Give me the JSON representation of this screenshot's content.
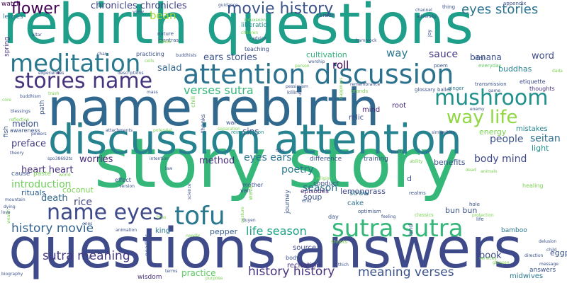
{
  "words": [
    {
      "text": "story story",
      "color": "#35b779"
    },
    {
      "text": "rebirth questions",
      "color": "#1f9e89"
    },
    {
      "text": "name rebirth",
      "color": "#31688e"
    },
    {
      "text": "questions answers",
      "color": "#3e4a89"
    },
    {
      "text": "discussion attention",
      "color": "#26828e"
    },
    {
      "text": "attention discussion",
      "color": "#2c728e"
    },
    {
      "text": "sutra sutra",
      "color": "#35b779"
    },
    {
      "text": "movie history",
      "color": "#3b528b"
    },
    {
      "text": "meditation",
      "color": "#2a788e"
    },
    {
      "text": "stories name",
      "color": "#46337e"
    },
    {
      "text": "mushroom",
      "color": "#21918c"
    },
    {
      "text": "way life",
      "color": "#90d743"
    },
    {
      "text": "tofu",
      "color": "#2a788e"
    },
    {
      "text": "name eyes",
      "color": "#3e4a89"
    },
    {
      "text": "flower",
      "color": "#440154"
    },
    {
      "text": "eyes stories",
      "color": "#2c728e"
    },
    {
      "text": "history movie",
      "color": "#33638d"
    },
    {
      "text": "sutra meaning",
      "color": "#443983"
    },
    {
      "text": "history history",
      "color": "#46327e"
    },
    {
      "text": "meaning verses",
      "color": "#3b528b"
    },
    {
      "text": "life season",
      "color": "#1fa187"
    },
    {
      "text": "verses sutra",
      "color": "#35b779"
    },
    {
      "text": "chronicles chronicles",
      "color": "#414487"
    },
    {
      "text": "heart heart",
      "color": "#46327e"
    },
    {
      "text": "introduction",
      "color": "#6ece58"
    },
    {
      "text": "poetry",
      "color": "#2a788e"
    },
    {
      "text": "worries",
      "color": "#482878"
    },
    {
      "text": "preface",
      "color": "#433e85"
    },
    {
      "text": "people",
      "color": "#3b528b"
    },
    {
      "text": "seitan",
      "color": "#2e6f8e"
    },
    {
      "text": "body mind",
      "color": "#3e4989"
    },
    {
      "text": "salad",
      "color": "#31688e"
    },
    {
      "text": "sauce",
      "color": "#443a83"
    },
    {
      "text": "season",
      "color": "#2d708e"
    },
    {
      "text": "ears stories",
      "color": "#3b528b"
    },
    {
      "text": "rice",
      "color": "#404688"
    },
    {
      "text": "death",
      "color": "#31688e"
    },
    {
      "text": "eyes ears",
      "color": "#2c728e"
    },
    {
      "text": "method",
      "color": "#472d7b"
    },
    {
      "text": "melon",
      "color": "#3b528b"
    },
    {
      "text": "bean",
      "color": "#a0da39"
    },
    {
      "text": "roll",
      "color": "#440154"
    },
    {
      "text": "way",
      "color": "#2a788e"
    },
    {
      "text": "word",
      "color": "#3e4a89"
    },
    {
      "text": "banana",
      "color": "#3b528b"
    },
    {
      "text": "buddhas",
      "color": "#27808e"
    },
    {
      "text": "cultivation",
      "color": "#2fb47c"
    },
    {
      "text": "energy",
      "color": "#7ad151"
    },
    {
      "text": "light",
      "color": "#21918c"
    },
    {
      "text": "lemongrass",
      "color": "#3e4989"
    },
    {
      "text": "book",
      "color": "#3e4a89"
    },
    {
      "text": "benefits",
      "color": "#3b528b"
    },
    {
      "text": "coconut",
      "color": "#7ad151"
    },
    {
      "text": "soup",
      "color": "#3b528b"
    },
    {
      "text": "bun bun",
      "color": "#3b528b"
    },
    {
      "text": "practice",
      "color": "#5ec962"
    },
    {
      "text": "midwives",
      "color": "#2a788e"
    },
    {
      "text": "eggplant",
      "color": "#3b528b"
    },
    {
      "text": "mistakes",
      "color": "#25848e"
    },
    {
      "text": "sins",
      "color": "#3e4a89"
    },
    {
      "text": "rituals",
      "color": "#33638d"
    },
    {
      "text": "pepper",
      "color": "#365c8d"
    },
    {
      "text": "king",
      "color": "#2a788e"
    },
    {
      "text": "cake",
      "color": "#2d708e"
    },
    {
      "text": "episodes",
      "color": "#482878"
    },
    {
      "text": "straw",
      "color": "#2d708e"
    },
    {
      "text": "root",
      "color": "#482878"
    },
    {
      "text": "relic",
      "color": "#3e4a89"
    },
    {
      "text": "mind",
      "color": "#482878"
    },
    {
      "text": "recitation",
      "color": "#46327e"
    },
    {
      "text": "source",
      "color": "#3e4a89"
    },
    {
      "text": "wisdom",
      "color": "#46327e"
    },
    {
      "text": "answers",
      "color": "#3b528b"
    },
    {
      "text": "bamboo",
      "color": "#2a788e"
    },
    {
      "text": "conduct",
      "color": "#3e4a89"
    },
    {
      "text": "mother",
      "color": "#3b528b"
    },
    {
      "text": "van",
      "color": "#3b528b"
    },
    {
      "text": "healing",
      "color": "#7ad151"
    },
    {
      "text": "thoughts",
      "color": "#46327e"
    },
    {
      "text": "etiquette",
      "color": "#3e4a89"
    },
    {
      "text": "everyday",
      "color": "#5ec962"
    },
    {
      "text": "poem",
      "color": "#3b528b"
    },
    {
      "text": "ballet",
      "color": "#3b528b"
    },
    {
      "text": "ginger",
      "color": "#2a788e"
    },
    {
      "text": "transmission",
      "color": "#3b528b"
    },
    {
      "text": "glossary",
      "color": "#3b528b"
    },
    {
      "text": "brands",
      "color": "#7ad151"
    },
    {
      "text": "watch",
      "color": "#440154"
    },
    {
      "text": "lenses",
      "color": "#2a788e"
    },
    {
      "text": "spring",
      "color": "#46327e"
    },
    {
      "text": "view",
      "color": "#3b528b"
    },
    {
      "text": "nature",
      "color": "#3b528b"
    },
    {
      "text": "mantras",
      "color": "#3b528b"
    },
    {
      "text": "practicing",
      "color": "#3b528b"
    },
    {
      "text": "buddhists",
      "color": "#3b528b"
    },
    {
      "text": "teaching",
      "color": "#3b528b"
    },
    {
      "text": "advice",
      "color": "#3b528b"
    },
    {
      "text": "ramen",
      "color": "#3b528b"
    },
    {
      "text": "hammock",
      "color": "#3b528b"
    },
    {
      "text": "appendix",
      "color": "#3b528b"
    },
    {
      "text": "thing",
      "color": "#3b528b"
    },
    {
      "text": "channel",
      "color": "#3b528b"
    },
    {
      "text": "adversity",
      "color": "#3b528b"
    },
    {
      "text": "guidance",
      "color": "#3b528b"
    },
    {
      "text": "induxsoon",
      "color": "#5ec962"
    },
    {
      "text": "liberation",
      "color": "#21918c"
    },
    {
      "text": "children",
      "color": "#7ad151"
    },
    {
      "text": "worship",
      "color": "#3b528b"
    },
    {
      "text": "person",
      "color": "#7ad151"
    },
    {
      "text": "remembrance",
      "color": "#3b528b"
    },
    {
      "text": "pessimism",
      "color": "#3b528b"
    },
    {
      "text": "killing",
      "color": "#3b528b"
    },
    {
      "text": "happiness",
      "color": "#7ad151"
    },
    {
      "text": "war",
      "color": "#3b528b"
    },
    {
      "text": "separation",
      "color": "#7ad151"
    },
    {
      "text": "reincarnation",
      "color": "#21918c"
    },
    {
      "text": "thanks",
      "color": "#3b528b"
    },
    {
      "text": "chili",
      "color": "#7ad151"
    },
    {
      "text": "path",
      "color": "#3b528b"
    },
    {
      "text": "fish",
      "color": "#3b528b"
    },
    {
      "text": "awareness",
      "color": "#3b528b"
    },
    {
      "text": "reflection",
      "color": "#7ad151"
    },
    {
      "text": "blessings",
      "color": "#3b528b"
    },
    {
      "text": "buddhism",
      "color": "#3b528b"
    },
    {
      "text": "experiences",
      "color": "#3b528b"
    },
    {
      "text": "descriptions",
      "color": "#3b528b"
    },
    {
      "text": "cells",
      "color": "#7ad151"
    },
    {
      "text": "char",
      "color": "#3b528b"
    },
    {
      "text": "altar",
      "color": "#3b528b"
    },
    {
      "text": "core",
      "color": "#7ad151"
    },
    {
      "text": "trash",
      "color": "#7ad151"
    },
    {
      "text": "mass",
      "color": "#3b528b"
    },
    {
      "text": "attachments",
      "color": "#3b528b"
    },
    {
      "text": "potential",
      "color": "#7ad151"
    },
    {
      "text": "powers",
      "color": "#3b528b"
    },
    {
      "text": "theory",
      "color": "#3b528b"
    },
    {
      "text": "intention",
      "color": "#3b528b"
    },
    {
      "text": "law",
      "color": "#3b528b"
    },
    {
      "text": "fate",
      "color": "#3b528b"
    },
    {
      "text": "cause",
      "color": "#3b528b"
    },
    {
      "text": "paste",
      "color": "#7ad151"
    },
    {
      "text": "world",
      "color": "#7ad151"
    },
    {
      "text": "effect",
      "color": "#3b528b"
    },
    {
      "text": "version",
      "color": "#3b528b"
    },
    {
      "text": "mountain",
      "color": "#3b528b"
    },
    {
      "text": "dying",
      "color": "#3b528b"
    },
    {
      "text": "wealth",
      "color": "#7ad151"
    },
    {
      "text": "love",
      "color": "#3b528b"
    },
    {
      "text": "animation",
      "color": "#3b528b"
    },
    {
      "text": "noodles",
      "color": "#3b528b"
    },
    {
      "text": "science",
      "color": "#3b528b"
    },
    {
      "text": "bliss",
      "color": "#7ad151"
    },
    {
      "text": "gesture",
      "color": "#7ad151"
    },
    {
      "text": "duyen",
      "color": "#3b528b"
    },
    {
      "text": "wave",
      "color": "#7ad151"
    },
    {
      "text": "religion",
      "color": "#7ad151"
    },
    {
      "text": "difference",
      "color": "#3b528b"
    },
    {
      "text": "training",
      "color": "#3b528b"
    },
    {
      "text": "journey",
      "color": "#3b528b"
    },
    {
      "text": "end",
      "color": "#3b528b"
    },
    {
      "text": "optimism",
      "color": "#3b528b"
    },
    {
      "text": "day",
      "color": "#3b528b"
    },
    {
      "text": "purity",
      "color": "#3b528b"
    },
    {
      "text": "ability",
      "color": "#7ad151"
    },
    {
      "text": "feeling",
      "color": "#3b528b"
    },
    {
      "text": "land",
      "color": "#3b528b"
    },
    {
      "text": "realms",
      "color": "#3b528b"
    },
    {
      "text": "classics",
      "color": "#7ad151"
    },
    {
      "text": "hole",
      "color": "#3b528b"
    },
    {
      "text": "protection",
      "color": "#7ad151"
    },
    {
      "text": "dead",
      "color": "#7ad151"
    },
    {
      "text": "animals",
      "color": "#7ad151"
    },
    {
      "text": "similarities",
      "color": "#3b528b"
    },
    {
      "text": "step",
      "color": "#3b528b"
    },
    {
      "text": "game",
      "color": "#3b528b"
    },
    {
      "text": "enemy",
      "color": "#3b528b"
    },
    {
      "text": "dada",
      "color": "#7ad151"
    },
    {
      "text": "joy",
      "color": "#3b528b"
    },
    {
      "text": "delusion",
      "color": "#3b528b"
    },
    {
      "text": "child",
      "color": "#3b528b"
    },
    {
      "text": "direction",
      "color": "#3b528b"
    },
    {
      "text": "message",
      "color": "#3b528b"
    },
    {
      "text": "glimpse",
      "color": "#7ad151"
    },
    {
      "text": "services",
      "color": "#7ad151"
    },
    {
      "text": "biography",
      "color": "#3b528b"
    },
    {
      "text": "hour",
      "color": "#3b528b"
    },
    {
      "text": "ones",
      "color": "#3b528b"
    },
    {
      "text": "terms",
      "color": "#3b528b"
    },
    {
      "text": "purpose",
      "color": "#7ad151"
    },
    {
      "text": "shoots",
      "color": "#7ad151"
    },
    {
      "text": "thich",
      "color": "#3b528b"
    },
    {
      "text": "body",
      "color": "#3b528b"
    },
    {
      "text": "fields",
      "color": "#7ad151"
    },
    {
      "text": "spo38692ts",
      "color": "#3b528b"
    },
    {
      "text": "life",
      "color": "#3b528b"
    },
    {
      "text": "d",
      "color": "#3b528b"
    },
    {
      "text": "needle",
      "color": "#7ad151"
    }
  ]
}
